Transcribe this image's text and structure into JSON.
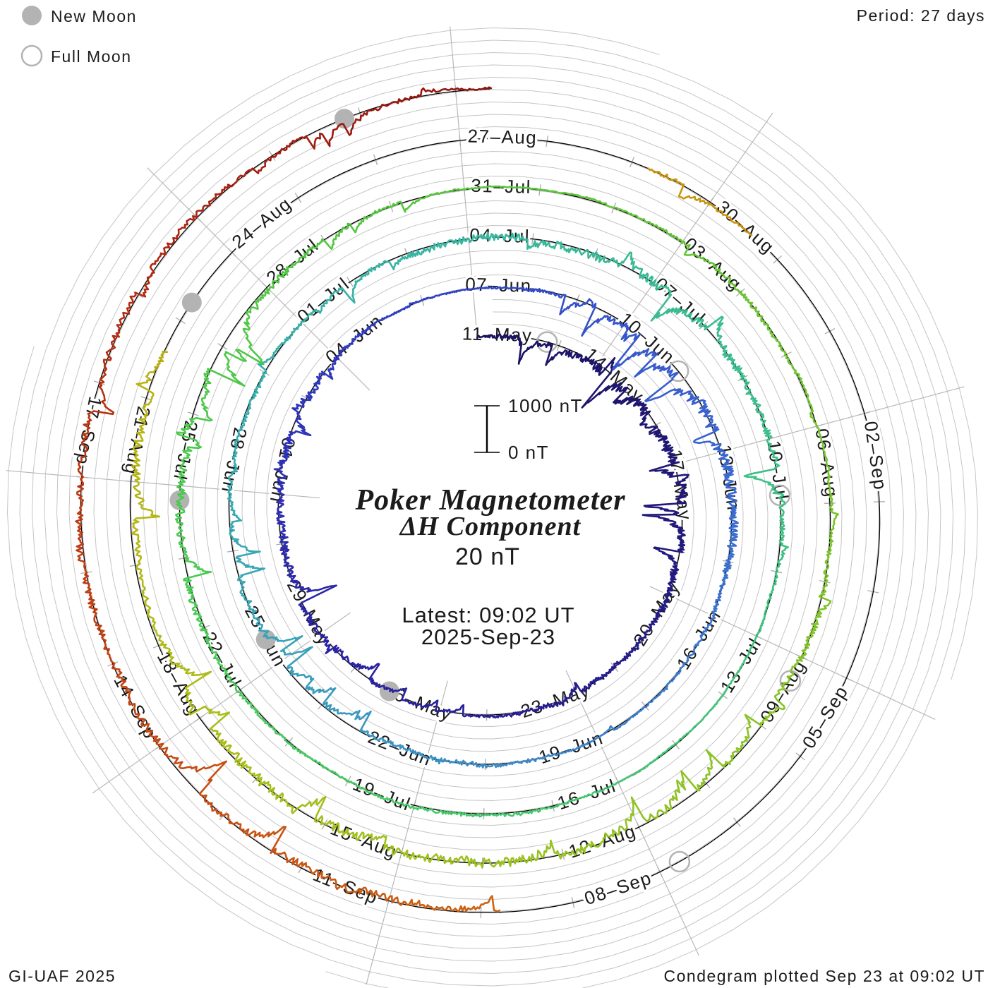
{
  "legend": {
    "new_moon_label": "New Moon",
    "full_moon_label": "Full Moon",
    "moon_gray": "#b3b3b3"
  },
  "corners": {
    "period_text": "Period: 27 days",
    "credit_text": "GI-UAF 2025",
    "plotted_text": "Condegram plotted Sep 23 at 09:02 UT"
  },
  "center_text": {
    "title_line1": "Poker Magnetometer",
    "title_line2": "ΔH Component",
    "subtitle": "20 nT",
    "latest_line1": "Latest: 09:02 UT",
    "latest_line2": "2025-Sep-23",
    "color": "#f23b3b"
  },
  "scale_bar": {
    "top_label": "1000 nT",
    "bottom_label": "0 nT",
    "span_nT": 1000
  },
  "chart_data": {
    "type": "line",
    "subtype": "condegram-polar-spiral",
    "title": "Poker Magnetometer ΔH Component",
    "period_days": 27,
    "start_date": "2025-05-11",
    "latest": "2025-Sep-23 09:02 UT",
    "end_t_days": 135.376,
    "label_step_days": 3,
    "radial_scale_nT_per_ring": 1000,
    "grid_step_nT": 250,
    "grid_color": "#c5c5c5",
    "spoke_color": "#b8b8b8",
    "tick_color": "#ababab",
    "baseline_color": "#000000",
    "moon_gray": "#b3b3b3",
    "ring_labels": [
      [
        "11–May",
        "14–May",
        "17–May",
        "20–May",
        "23–May",
        "26–May",
        "29–May",
        "01–Jun",
        "04–Jun"
      ],
      [
        "07–Jun",
        "10–Jun",
        "13–Jun",
        "16–Jun",
        "19–Jun",
        "22–Jun",
        "25–Jun",
        "28–Jun",
        "01–Jul"
      ],
      [
        "04–Jul",
        "07–Jul",
        "10–Jul",
        "13–Jul",
        "16–Jul",
        "19–Jul",
        "22–Jul",
        "25–Jul",
        "28–Jul"
      ],
      [
        "31–Jul",
        "03–Aug",
        "06–Aug",
        "09–Aug",
        "12–Aug",
        "15–Aug",
        "18–Aug",
        "21–Aug",
        "24–Aug"
      ],
      [
        "27–Aug",
        "30–Aug",
        "02–Sep",
        "05–Sep",
        "08–Sep",
        "11–Sep",
        "14–Sep",
        "17–Sep"
      ]
    ],
    "data_segments": [
      [
        0,
        103.6
      ],
      [
        110.2,
        111.6
      ],
      [
        121.8,
        135.376
      ]
    ],
    "moons": {
      "full": [
        {
          "date": "12-May",
          "t": 1.7
        },
        {
          "date": "11-Jun",
          "t": 31.32
        },
        {
          "date": "10-Jul",
          "t": 60.86
        },
        {
          "date": "09-Aug",
          "t": 90.33
        },
        {
          "date": "07-Sep",
          "t": 119.76
        }
      ],
      "new": [
        {
          "date": "27-May",
          "t": 16.13
        },
        {
          "date": "25-Jun",
          "t": 45.44
        },
        {
          "date": "24-Jul",
          "t": 74.8
        },
        {
          "date": "23-Aug",
          "t": 104.25
        },
        {
          "date": "21-Sep",
          "t": 133.83
        }
      ]
    },
    "colormap": [
      [
        0,
        "#1a1260"
      ],
      [
        10,
        "#241b86"
      ],
      [
        18,
        "#2b24a5"
      ],
      [
        26,
        "#3040c6"
      ],
      [
        33,
        "#3a66cf"
      ],
      [
        40,
        "#3c86c9"
      ],
      [
        46,
        "#38a5b6"
      ],
      [
        53,
        "#37b4a2"
      ],
      [
        60,
        "#3dbf8a"
      ],
      [
        67,
        "#44c76e"
      ],
      [
        74,
        "#49ca52"
      ],
      [
        81,
        "#58c43c"
      ],
      [
        88,
        "#7ac32d"
      ],
      [
        95,
        "#9cc220"
      ],
      [
        101,
        "#b2ba16"
      ],
      [
        105,
        "#bfab10"
      ],
      [
        110,
        "#c9980c"
      ],
      [
        115,
        "#cb8a0e"
      ],
      [
        120,
        "#cc6f12"
      ],
      [
        125,
        "#c85013"
      ],
      [
        129,
        "#bd3713"
      ],
      [
        132,
        "#ad2411"
      ],
      [
        135.4,
        "#8e130e"
      ]
    ],
    "disturbance_events": [
      [
        1,
        0.8,
        120
      ],
      [
        3.5,
        1.2,
        240
      ],
      [
        6.5,
        2.2,
        380
      ],
      [
        12,
        1.5,
        150
      ],
      [
        19.5,
        2.5,
        300
      ],
      [
        23,
        1.2,
        170
      ],
      [
        30.5,
        1.5,
        260
      ],
      [
        33.5,
        2,
        330
      ],
      [
        41,
        1,
        130
      ],
      [
        45.5,
        2,
        260
      ],
      [
        50,
        1,
        90
      ],
      [
        54,
        1.5,
        190
      ],
      [
        57.5,
        2,
        300
      ],
      [
        61,
        1,
        150
      ],
      [
        68,
        1.2,
        110
      ],
      [
        74.5,
        2,
        280
      ],
      [
        78,
        1.5,
        170
      ],
      [
        85,
        1,
        130
      ],
      [
        89.5,
        1,
        170
      ],
      [
        94.5,
        2.5,
        340
      ],
      [
        98.5,
        1.5,
        210
      ],
      [
        102.5,
        1.3,
        300
      ],
      [
        110.7,
        0.6,
        130
      ],
      [
        123.5,
        1.5,
        260
      ],
      [
        127.5,
        2,
        240
      ],
      [
        131,
        1.2,
        170
      ],
      [
        134,
        1,
        130
      ]
    ]
  }
}
